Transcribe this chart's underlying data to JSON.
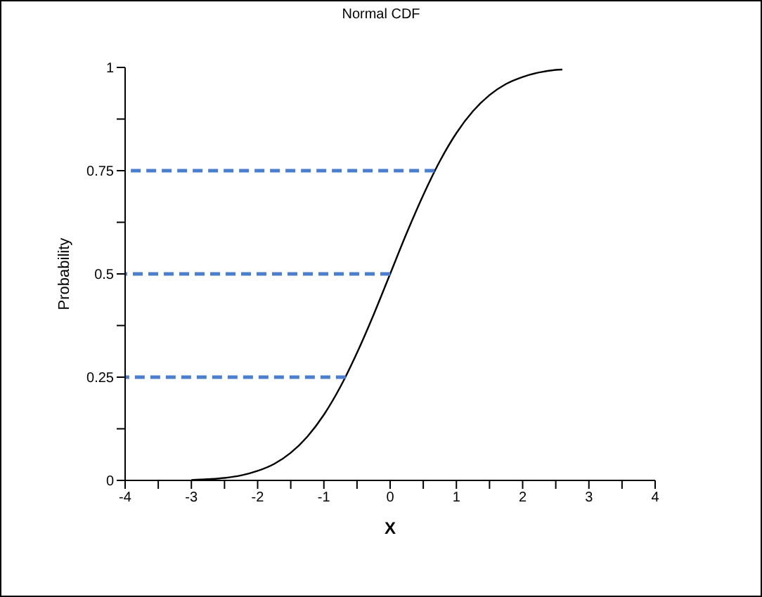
{
  "chart_data": {
    "type": "line",
    "title": "Normal CDF",
    "xlabel": "X",
    "ylabel": "Probability",
    "xlim": [
      -4,
      4
    ],
    "ylim": [
      0,
      1
    ],
    "xticks": [
      -4,
      {
        "value": -3.5,
        "label": null
      },
      -3,
      {
        "value": -2.5,
        "label": null
      },
      -2,
      {
        "value": -1.5,
        "label": null
      },
      -1,
      {
        "value": -0.5,
        "label": null
      },
      0,
      {
        "value": 0.5,
        "label": null
      },
      1,
      {
        "value": 1.5,
        "label": null
      },
      2,
      {
        "value": 2.5,
        "label": null
      },
      3,
      {
        "value": 3.5,
        "label": null
      },
      4
    ],
    "yticks": [
      0,
      {
        "value": 0.125,
        "label": null
      },
      0.25,
      {
        "value": 0.375,
        "label": null
      },
      0.5,
      {
        "value": 0.625,
        "label": null
      },
      0.75,
      {
        "value": 0.875,
        "label": null
      },
      1
    ],
    "grid": false,
    "marker": "none",
    "series": [
      {
        "color": "#000000",
        "line_style": "solid",
        "x": [
          -3,
          -2.75,
          -2.5,
          -2.25,
          -2,
          -1.75,
          -1.5,
          -1.25,
          -1,
          -0.75,
          -0.5,
          -0.25,
          0,
          0.25,
          0.5,
          0.75,
          1,
          1.25,
          1.5,
          1.75,
          2,
          2.25,
          2.5,
          2.6
        ],
        "values": [
          0.001,
          0.003,
          0.006,
          0.012,
          0.023,
          0.04,
          0.067,
          0.106,
          0.159,
          0.227,
          0.309,
          0.401,
          0.5,
          0.599,
          0.691,
          0.773,
          0.841,
          0.894,
          0.933,
          0.96,
          0.977,
          0.988,
          0.994,
          0.995
        ]
      },
      {
        "color": "#4a7fd0",
        "line_style": "dashed",
        "x": [
          -4,
          -0.67
        ],
        "values": [
          0.25,
          0.25
        ]
      },
      {
        "color": "#4a7fd0",
        "line_style": "dashed",
        "x": [
          -4,
          0
        ],
        "values": [
          0.5,
          0.5
        ]
      },
      {
        "color": "#4a7fd0",
        "line_style": "dashed",
        "x": [
          -4,
          0.67
        ],
        "values": [
          0.75,
          0.75
        ]
      }
    ]
  }
}
